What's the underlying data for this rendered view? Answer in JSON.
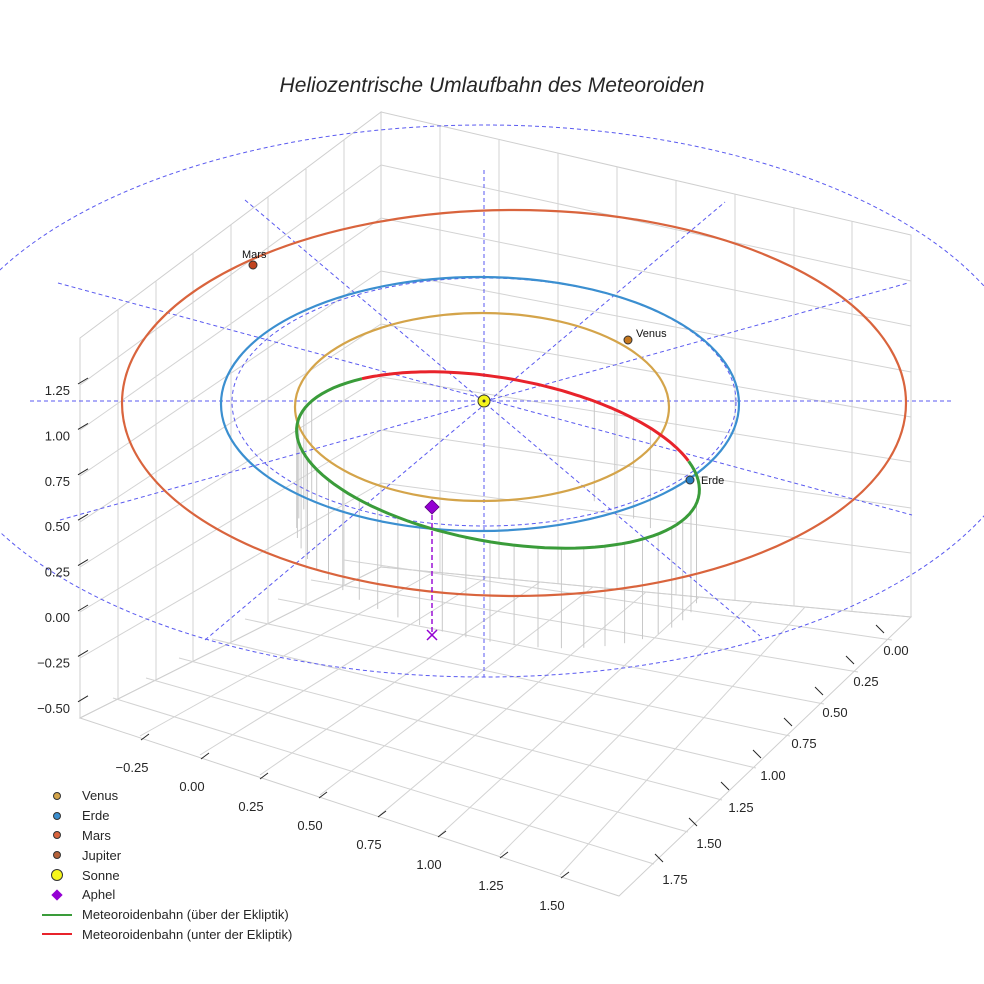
{
  "title": "Heliozentrische Umlaufbahn des Meteoroiden",
  "colors": {
    "venus": "#d4a44a",
    "erde": "#3b8fd0",
    "mars": "#d9643d",
    "jupiter": "#b5623a",
    "sonne": "#f5f51a",
    "aphel": "#9400d3",
    "above": "#3a9c3a",
    "below": "#e8232b",
    "grid": "#d3d3d3",
    "guide": "#5a5af0"
  },
  "chart_data": {
    "type": "3d-orbit",
    "title": "Heliozentrische Umlaufbahn des Meteoroiden",
    "axes": {
      "x": {
        "ticks": [
          "−0.25",
          "0.00",
          "0.25",
          "0.50",
          "0.75",
          "1.00",
          "1.25",
          "1.50"
        ]
      },
      "y": {
        "ticks": [
          "0.00",
          "0.25",
          "0.50",
          "0.75",
          "1.00",
          "1.25",
          "1.50",
          "1.75"
        ]
      },
      "z": {
        "ticks": [
          "1.25",
          "1.00",
          "0.75",
          "0.50",
          "0.25",
          "0.00",
          "−0.25",
          "−0.50"
        ]
      }
    },
    "orbits": [
      {
        "name": "Venus",
        "a_au": 0.72
      },
      {
        "name": "Erde",
        "a_au": 1.0
      },
      {
        "name": "Mars",
        "a_au": 1.52
      }
    ],
    "planets": [
      {
        "name": "Venus",
        "label": "Venus",
        "angle_deg": 50
      },
      {
        "name": "Erde",
        "label": "Erde",
        "angle_deg": -35
      },
      {
        "name": "Mars",
        "label": "Mars",
        "angle_deg": 138
      }
    ],
    "meteoroid": {
      "perihelion_au": 0.75,
      "aphelion_au": 1.45,
      "segments": [
        "über der Ekliptik",
        "unter der Ekliptik"
      ]
    },
    "legend": [
      {
        "label": "Venus",
        "marker": "dot",
        "color_key": "venus"
      },
      {
        "label": "Erde",
        "marker": "dot",
        "color_key": "erde"
      },
      {
        "label": "Mars",
        "marker": "dot",
        "color_key": "mars"
      },
      {
        "label": "Jupiter",
        "marker": "dot",
        "color_key": "jupiter"
      },
      {
        "label": "Sonne",
        "marker": "bigdot",
        "color_key": "sonne"
      },
      {
        "label": "Aphel",
        "marker": "diamond",
        "color_key": "aphel"
      },
      {
        "label": "Meteoroidenbahn (über der Ekliptik)",
        "marker": "line",
        "color_key": "above"
      },
      {
        "label": "Meteoroidenbahn (unter der Ekliptik)",
        "marker": "line",
        "color_key": "below"
      }
    ]
  }
}
